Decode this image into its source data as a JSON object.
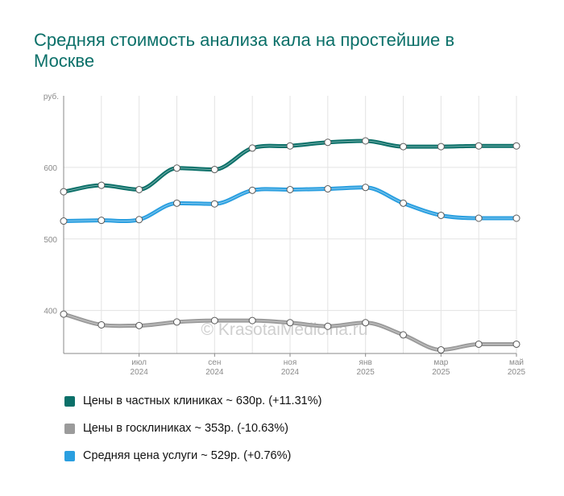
{
  "title": "Средняя стоимость анализа кала на простейшие в Москве",
  "watermark": "© KrasotaiMedicina.ru",
  "chart_data": {
    "type": "line",
    "ylabel": "руб.",
    "ylim": [
      340,
      700
    ],
    "yticks": [
      400,
      500,
      600
    ],
    "x": [
      "2024-05",
      "2024-06",
      "2024-07",
      "2024-08",
      "2024-09",
      "2024-10",
      "2024-11",
      "2024-12",
      "2025-01",
      "2025-02",
      "2025-03",
      "2025-04",
      "2025-05"
    ],
    "x_tick_labels": [
      {
        "month": "июл",
        "year": "2024"
      },
      {
        "month": "сен",
        "year": "2024"
      },
      {
        "month": "ноя",
        "year": "2024"
      },
      {
        "month": "янв",
        "year": "2025"
      },
      {
        "month": "мар",
        "year": "2025"
      },
      {
        "month": "май",
        "year": "2025"
      }
    ],
    "grid": true,
    "legend_position": "bottom",
    "series": [
      {
        "name": "Цены в частных клиниках",
        "color": "#0b7069",
        "values": [
          566,
          575,
          569,
          599,
          597,
          627,
          630,
          635,
          637,
          629,
          629,
          630,
          630
        ]
      },
      {
        "name": "Цены в госклиниках",
        "color": "#9b9b9b",
        "values": [
          395,
          380,
          379,
          384,
          386,
          386,
          383,
          378,
          383,
          366,
          345,
          353,
          353
        ]
      },
      {
        "name": "Средняя цена услуги",
        "color": "#2a9fe0",
        "values": [
          525,
          526,
          527,
          550,
          549,
          568,
          569,
          570,
          572,
          550,
          533,
          529,
          529
        ]
      }
    ]
  },
  "legend": [
    {
      "label": "Цены в частных клиниках ~ 630р. (+11.31%)",
      "color": "#0b7069"
    },
    {
      "label": "Цены в госклиниках ~ 353р. (-10.63%)",
      "color": "#9b9b9b"
    },
    {
      "label": "Средняя цена услуги ~ 529р. (+0.76%)",
      "color": "#2a9fe0"
    }
  ]
}
